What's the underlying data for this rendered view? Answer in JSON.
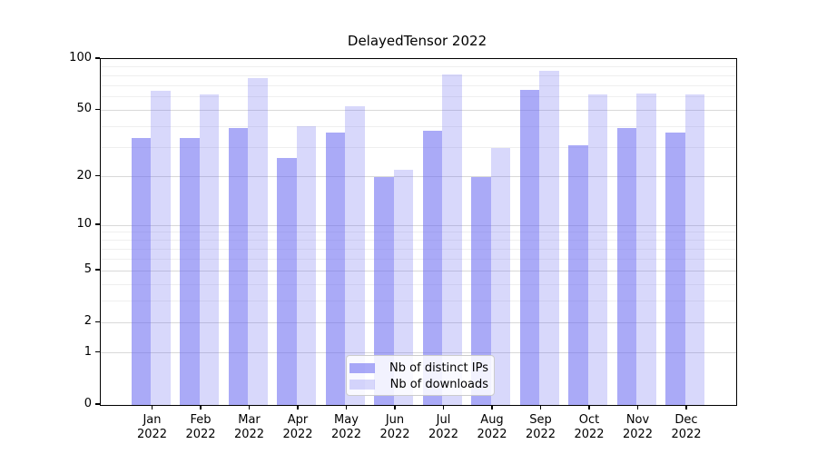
{
  "chart": {
    "title": "DelayedTensor 2022"
  },
  "chart_data": {
    "type": "bar",
    "title": "DelayedTensor 2022",
    "categories": [
      "Jan",
      "Feb",
      "Mar",
      "Apr",
      "May",
      "Jun",
      "Jul",
      "Aug",
      "Sep",
      "Oct",
      "Nov",
      "Dec"
    ],
    "category_year_suffix": "2022",
    "series": [
      {
        "name": "Nb of distinct IPs",
        "color_hex": "#a8a8f6",
        "fill": "rgba(100,100,240,0.55)",
        "values": [
          34,
          34,
          39,
          26,
          37,
          20,
          38,
          20,
          66,
          31,
          39,
          37
        ]
      },
      {
        "name": "Nb of downloads",
        "color_hex": "#d8d8f8",
        "fill": "rgba(100,100,240,0.25)",
        "values": [
          65,
          62,
          77,
          40,
          53,
          22,
          81,
          30,
          85,
          62,
          63,
          62
        ]
      }
    ],
    "xlabel": "",
    "ylabel": "",
    "yscale": "log1p",
    "ylim": [
      0,
      100
    ],
    "y_ticks": [
      0,
      1,
      2,
      5,
      10,
      20,
      50,
      100
    ],
    "y_minor_gridlines": [
      3,
      4,
      6,
      7,
      8,
      9,
      30,
      40,
      60,
      70,
      80,
      90
    ],
    "grid": true,
    "legend_position": "lower center",
    "appearance": {
      "grid_major_color": "#d9d9d9",
      "grid_minor_color": "#efefef",
      "axis_color": "#000000",
      "text_color": "#000000",
      "legend_border_color": "#cccccc",
      "background": "#ffffff"
    }
  }
}
